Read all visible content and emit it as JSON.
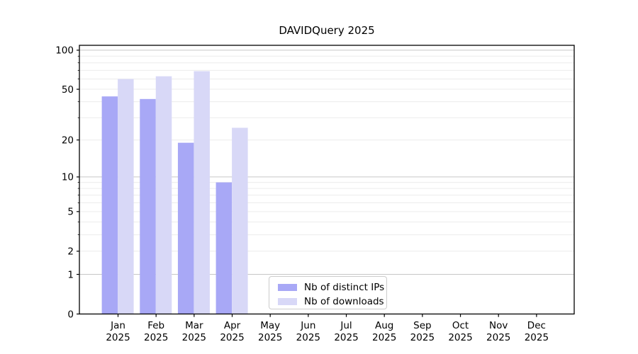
{
  "chart_data": {
    "type": "bar",
    "title": "DAVIDQuery 2025",
    "categories": [
      "Jan",
      "Feb",
      "Mar",
      "Apr",
      "May",
      "Jun",
      "Jul",
      "Aug",
      "Sep",
      "Oct",
      "Nov",
      "Dec"
    ],
    "year": "2025",
    "series": [
      {
        "name": "Nb of distinct IPs",
        "color": "#a8a8f6",
        "values": [
          44,
          42,
          19,
          9,
          0,
          0,
          0,
          0,
          0,
          0,
          0,
          0
        ]
      },
      {
        "name": "Nb of downloads",
        "color": "#d8d8f7",
        "values": [
          60,
          63,
          69,
          25,
          0,
          0,
          0,
          0,
          0,
          0,
          0,
          0
        ]
      }
    ],
    "yscale": "log1p",
    "ylim": [
      0,
      109
    ],
    "yticks": [
      0,
      1,
      2,
      5,
      10,
      20,
      50,
      100
    ],
    "ytick_labels": [
      "0",
      "1",
      "2",
      "5",
      "10",
      "20",
      "50",
      "100"
    ],
    "minor_yticks": [
      3,
      4,
      6,
      7,
      8,
      9,
      30,
      40,
      60,
      70,
      80,
      90
    ],
    "major_gridlines": [
      1,
      10,
      100
    ],
    "minor_gridlines": [
      2,
      3,
      4,
      5,
      6,
      7,
      8,
      9,
      20,
      30,
      40,
      50,
      60,
      70,
      80,
      90
    ],
    "grid": true,
    "legend_position": "lower center",
    "colors": {
      "bar_distinct_ips": "#a8a8f6",
      "bar_downloads": "#d8d8f7",
      "grid_major": "#c7c7c7",
      "grid_minor": "#ececec",
      "axis": "#000000",
      "legend_border": "#cccccc"
    }
  }
}
